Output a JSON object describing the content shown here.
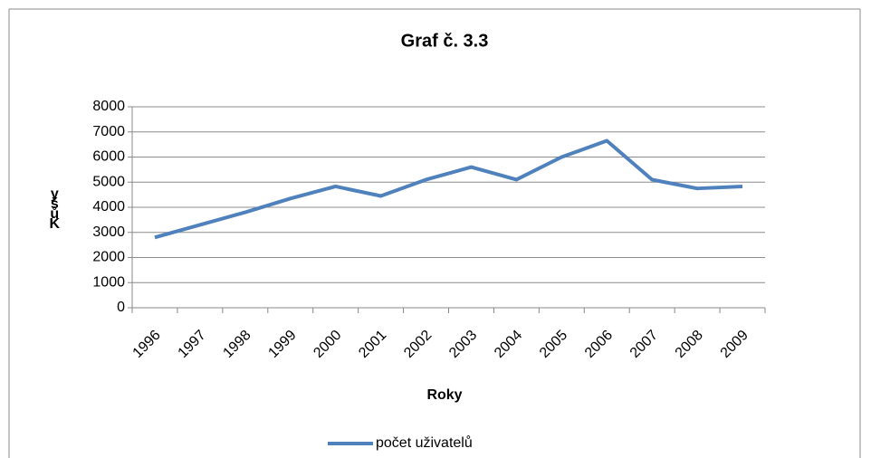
{
  "chart_data": {
    "type": "line",
    "title": "Graf č. 3.3",
    "x_label": "Roky",
    "y_label": "yšůK",
    "categories": [
      "1996",
      "1997",
      "1998",
      "1999",
      "2000",
      "2001",
      "2002",
      "2003",
      "2004",
      "2005",
      "2006",
      "2007",
      "2008",
      "2009"
    ],
    "series": [
      {
        "name": "počet uživatelů",
        "color": "#4f81bd",
        "values": [
          2800,
          3300,
          3800,
          4350,
          4830,
          4450,
          5100,
          5600,
          5100,
          6000,
          6650,
          5100,
          4750,
          4830
        ]
      }
    ],
    "ylim": [
      0,
      8000
    ],
    "yticks": [
      0,
      1000,
      2000,
      3000,
      4000,
      5000,
      6000,
      7000,
      8000
    ],
    "grid": true,
    "legend": "bottom"
  }
}
